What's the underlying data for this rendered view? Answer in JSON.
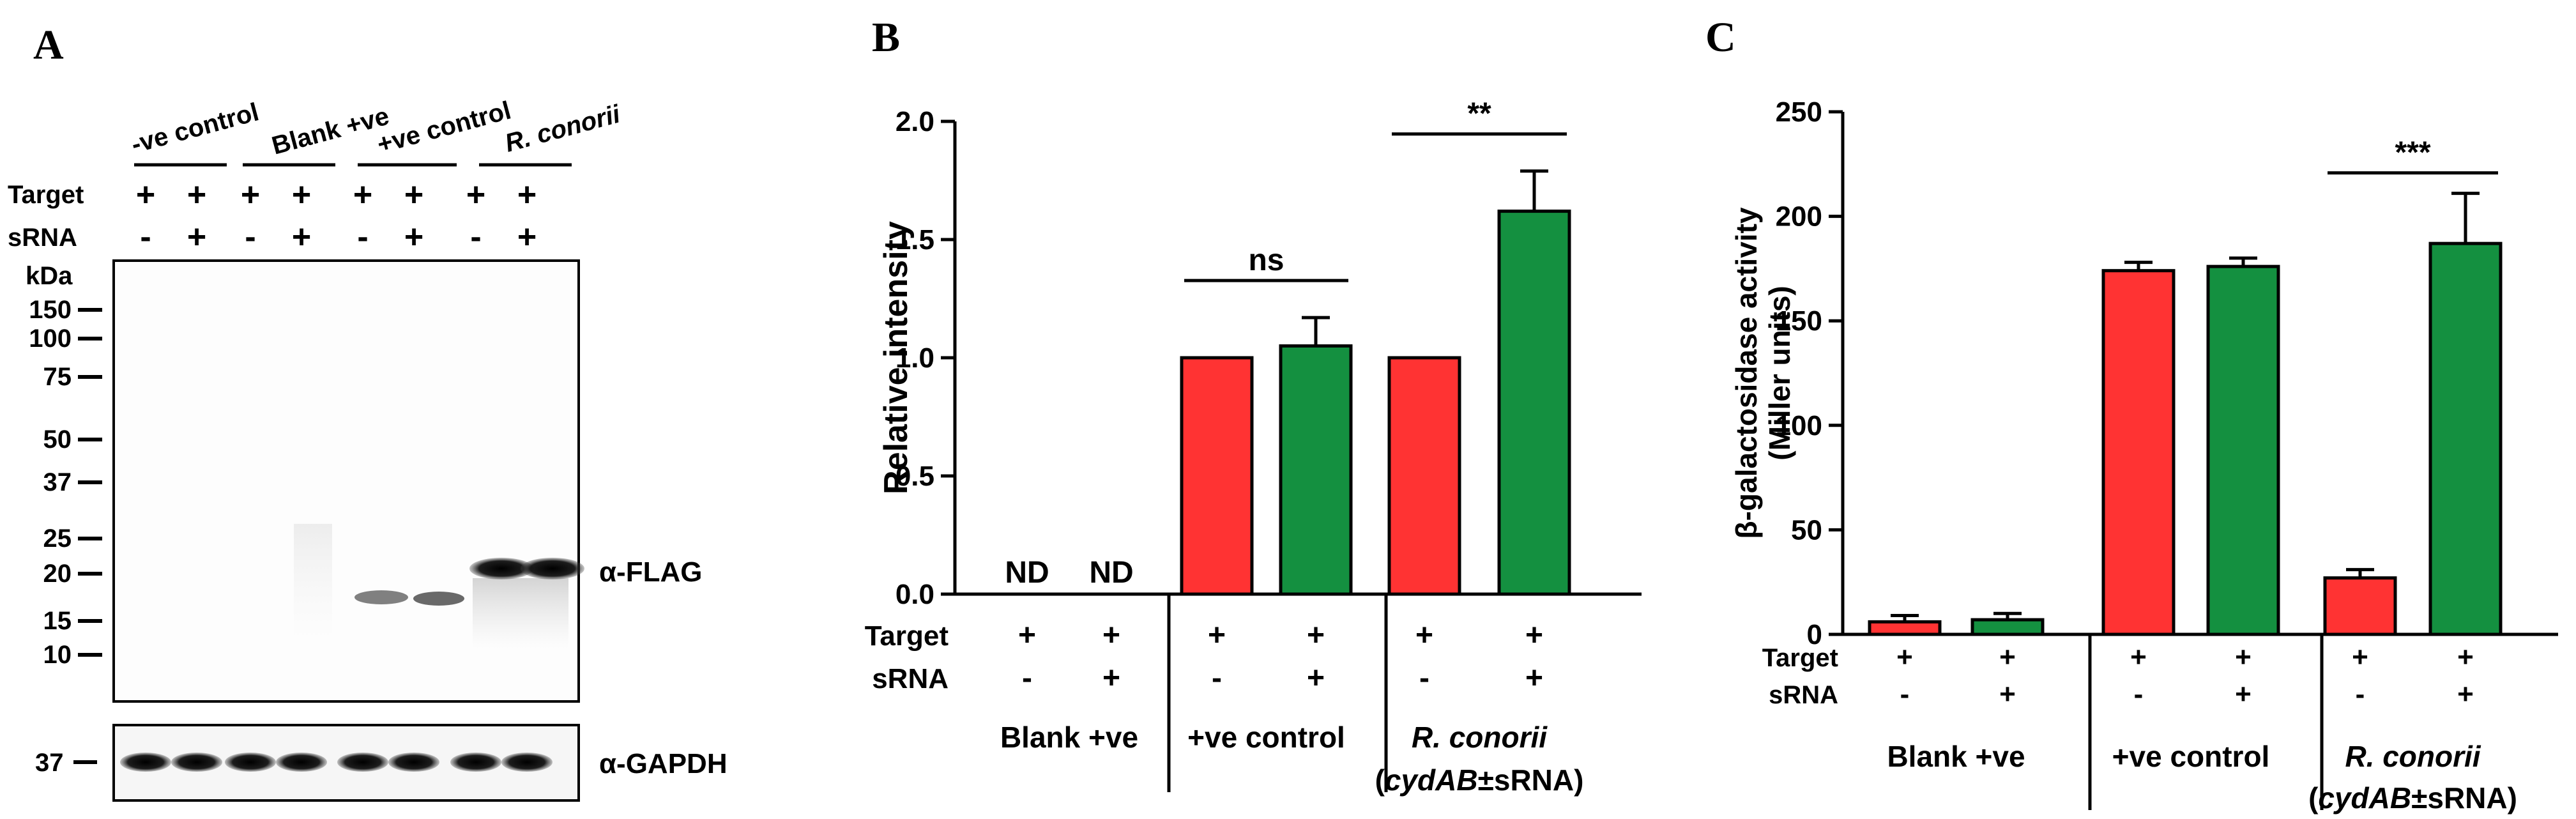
{
  "panels": {
    "a": {
      "letter": "A"
    },
    "b": {
      "letter": "B"
    },
    "c": {
      "letter": "C"
    }
  },
  "blot": {
    "groups": [
      "-ve control",
      "Blank +ve",
      "+ve control",
      "R. conorii"
    ],
    "row_target_label": "Target",
    "row_srna_label": "sRNA",
    "target_signs": [
      "+",
      "+",
      "+",
      "+",
      "+",
      "+",
      "+",
      "+"
    ],
    "srna_signs": [
      "-",
      "+",
      "-",
      "+",
      "-",
      "+",
      "-",
      "+"
    ],
    "unit_label": "kDa",
    "markers": [
      "150",
      "100",
      "75",
      "50",
      "37",
      "25",
      "20",
      "15",
      "10"
    ],
    "antibody_main": "α-FLAG",
    "gapdh_marker": "37",
    "antibody_loading": "α-GAPDH"
  },
  "chart_data": [
    {
      "type": "bar",
      "panel": "B",
      "ylabel": "Relative intensity",
      "ylim": [
        0,
        2.0
      ],
      "yticks": [
        "0.0",
        "0.5",
        "1.0",
        "1.5",
        "2.0"
      ],
      "bars": [
        {
          "group": "Blank +ve",
          "srna": "-",
          "value": 0,
          "error": 0,
          "color": "#ff3333",
          "label": "ND"
        },
        {
          "group": "Blank +ve",
          "srna": "+",
          "value": 0,
          "error": 0,
          "color": "#149040",
          "label": "ND"
        },
        {
          "group": "+ve control",
          "srna": "-",
          "value": 1.0,
          "error": 0,
          "color": "#ff3333",
          "label": ""
        },
        {
          "group": "+ve control",
          "srna": "+",
          "value": 1.05,
          "error": 0.12,
          "color": "#149040",
          "label": ""
        },
        {
          "group": "R. conorii",
          "srna": "-",
          "value": 1.0,
          "error": 0,
          "color": "#ff3333",
          "label": ""
        },
        {
          "group": "R. conorii",
          "srna": "+",
          "value": 1.62,
          "error": 0.17,
          "color": "#149040",
          "label": ""
        }
      ],
      "significance": [
        {
          "from": 2,
          "to": 3,
          "label": "ns"
        },
        {
          "from": 4,
          "to": 5,
          "label": "**"
        }
      ],
      "row_target_label": "Target",
      "row_srna_label": "sRNA",
      "target_signs": [
        "+",
        "+",
        "+",
        "+",
        "+",
        "+"
      ],
      "srna_signs": [
        "-",
        "+",
        "-",
        "+",
        "-",
        "+"
      ],
      "group_labels": [
        "Blank +ve",
        "+ve control",
        "R. conorii"
      ],
      "group_sublabel_prefix": "(",
      "group_sublabel_italic": "cydAB",
      "group_sublabel_suffix": "±sRNA)"
    },
    {
      "type": "bar",
      "panel": "C",
      "ylabel_line1": "β-galactosidase activity",
      "ylabel_line2": "(Miller units)",
      "ylim": [
        0,
        250
      ],
      "yticks": [
        "0",
        "50",
        "100",
        "150",
        "200",
        "250"
      ],
      "bars": [
        {
          "group": "Blank +ve",
          "srna": "-",
          "value": 6,
          "error": 3,
          "color": "#ff3333"
        },
        {
          "group": "Blank +ve",
          "srna": "+",
          "value": 7,
          "error": 3,
          "color": "#149040"
        },
        {
          "group": "+ve control",
          "srna": "-",
          "value": 174,
          "error": 4,
          "color": "#ff3333"
        },
        {
          "group": "+ve control",
          "srna": "+",
          "value": 176,
          "error": 4,
          "color": "#149040"
        },
        {
          "group": "R. conorii",
          "srna": "-",
          "value": 27,
          "error": 4,
          "color": "#ff3333"
        },
        {
          "group": "R. conorii",
          "srna": "+",
          "value": 187,
          "error": 24,
          "color": "#149040"
        }
      ],
      "significance": [
        {
          "from": 4,
          "to": 5,
          "label": "***"
        }
      ],
      "row_target_label": "Target",
      "row_srna_label": "sRNA",
      "target_signs": [
        "+",
        "+",
        "+",
        "+",
        "+",
        "+"
      ],
      "srna_signs": [
        "-",
        "+",
        "-",
        "+",
        "-",
        "+"
      ],
      "group_labels": [
        "Blank +ve",
        "+ve control",
        "R. conorii"
      ],
      "group_sublabel_prefix": "(",
      "group_sublabel_italic": "cydAB",
      "group_sublabel_suffix": "±sRNA)"
    }
  ]
}
